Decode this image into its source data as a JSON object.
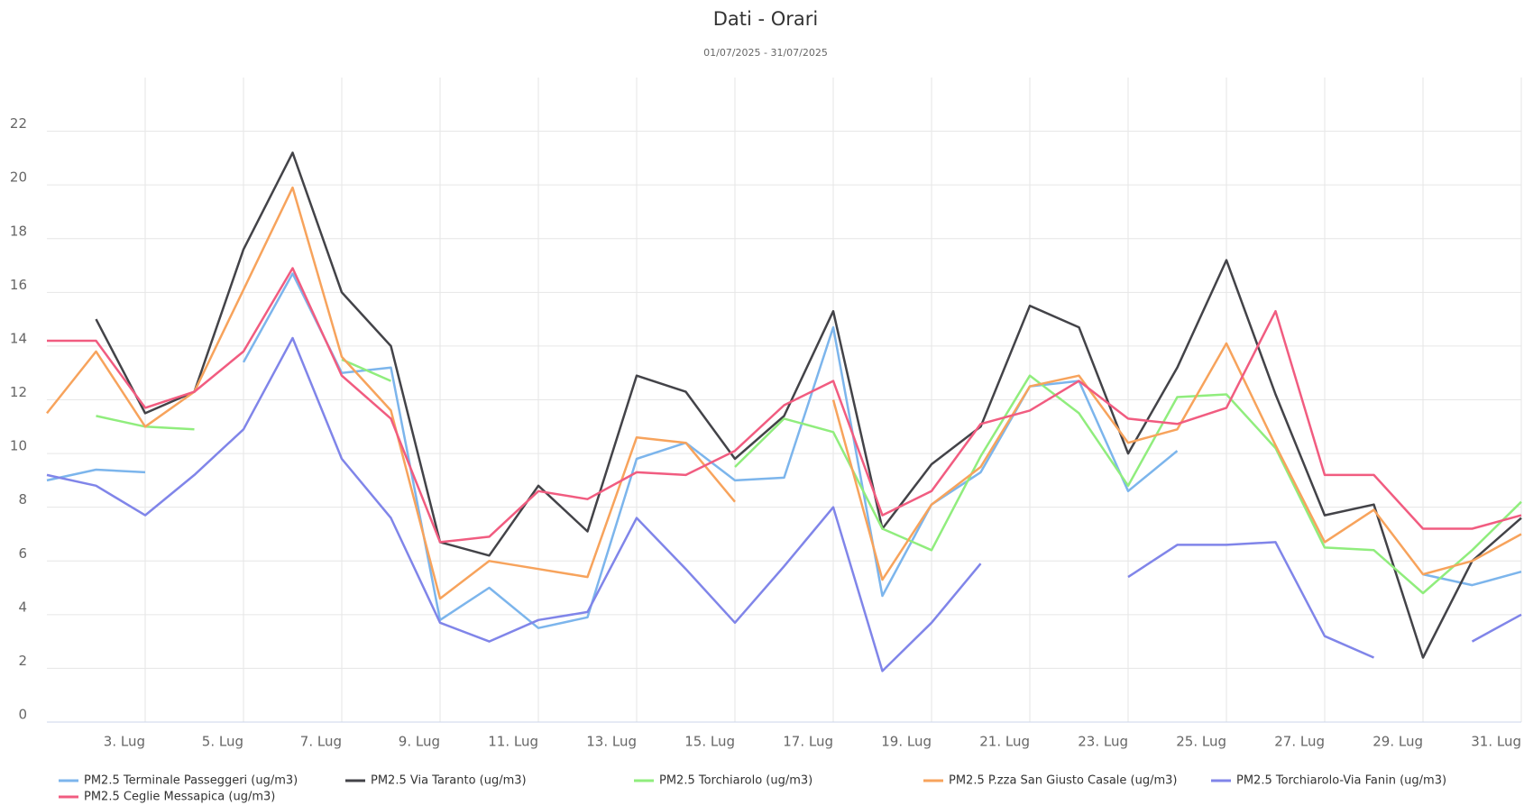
{
  "chart_data": {
    "type": "line",
    "title": "Dati - Orari",
    "subtitle": "01/07/2025 - 31/07/2025",
    "x": [
      1,
      2,
      3,
      4,
      5,
      6,
      7,
      8,
      9,
      10,
      11,
      12,
      13,
      14,
      15,
      16,
      17,
      18,
      19,
      20,
      21,
      22,
      23,
      24,
      25,
      26,
      27,
      28,
      29,
      30,
      31
    ],
    "xlim": [
      1,
      31
    ],
    "xticks": [
      {
        "value": 3,
        "label": "3. Lug"
      },
      {
        "value": 5,
        "label": "5. Lug"
      },
      {
        "value": 7,
        "label": "7. Lug"
      },
      {
        "value": 9,
        "label": "9. Lug"
      },
      {
        "value": 11,
        "label": "11. Lug"
      },
      {
        "value": 13,
        "label": "13. Lug"
      },
      {
        "value": 15,
        "label": "15. Lug"
      },
      {
        "value": 17,
        "label": "17. Lug"
      },
      {
        "value": 19,
        "label": "19. Lug"
      },
      {
        "value": 21,
        "label": "21. Lug"
      },
      {
        "value": 23,
        "label": "23. Lug"
      },
      {
        "value": 25,
        "label": "25. Lug"
      },
      {
        "value": 27,
        "label": "27. Lug"
      },
      {
        "value": 29,
        "label": "29. Lug"
      },
      {
        "value": 31,
        "label": "31. Lug"
      }
    ],
    "ylim": [
      0,
      24
    ],
    "yticks": [
      0,
      2,
      4,
      6,
      8,
      10,
      12,
      14,
      16,
      18,
      20,
      22
    ],
    "grid": true,
    "series": [
      {
        "name": "PM2.5 Terminale Passeggeri (ug/m3)",
        "color": "#7cb5ec",
        "values": [
          9.0,
          9.4,
          9.3,
          null,
          13.4,
          16.7,
          13.0,
          13.2,
          3.8,
          5.0,
          3.5,
          3.9,
          9.8,
          10.4,
          9.0,
          9.1,
          14.7,
          4.7,
          8.1,
          9.3,
          12.5,
          12.7,
          8.6,
          10.1,
          null,
          null,
          null,
          null,
          5.5,
          5.1,
          5.6
        ]
      },
      {
        "name": "PM2.5 Via Taranto (ug/m3)",
        "color": "#434348",
        "values": [
          null,
          15.0,
          11.5,
          12.3,
          17.6,
          21.2,
          16.0,
          14.0,
          6.7,
          6.2,
          8.8,
          7.1,
          12.9,
          12.3,
          9.8,
          11.4,
          15.3,
          7.2,
          9.6,
          11.0,
          15.5,
          14.7,
          10.0,
          13.2,
          17.2,
          12.2,
          7.7,
          8.1,
          2.4,
          6.0,
          7.6
        ]
      },
      {
        "name": "PM2.5 Torchiarolo (ug/m3)",
        "color": "#90ed7d",
        "values": [
          null,
          11.4,
          11.0,
          10.9,
          null,
          null,
          13.5,
          12.7,
          null,
          null,
          null,
          null,
          null,
          null,
          9.5,
          11.3,
          10.8,
          7.2,
          6.4,
          9.9,
          12.9,
          11.5,
          8.8,
          12.1,
          12.2,
          10.2,
          6.5,
          6.4,
          4.8,
          6.4,
          8.2
        ]
      },
      {
        "name": "PM2.5 P.zza San Giusto Casale (ug/m3)",
        "color": "#f7a35c",
        "values": [
          11.5,
          13.8,
          11.0,
          12.3,
          16.1,
          19.9,
          13.6,
          11.6,
          4.6,
          6.0,
          5.7,
          5.4,
          10.6,
          10.4,
          8.2,
          null,
          12.0,
          5.3,
          8.1,
          9.5,
          12.5,
          12.9,
          10.4,
          10.9,
          14.1,
          10.3,
          6.7,
          7.9,
          5.5,
          6.0,
          7.0
        ]
      },
      {
        "name": "PM2.5 Torchiarolo-Via Fanin (ug/m3)",
        "color": "#8085e9",
        "values": [
          9.2,
          8.8,
          7.7,
          9.2,
          10.9,
          14.3,
          9.8,
          7.6,
          3.7,
          3.0,
          3.8,
          4.1,
          7.6,
          5.7,
          3.7,
          5.8,
          8.0,
          1.9,
          3.7,
          5.9,
          null,
          null,
          5.4,
          6.6,
          6.6,
          6.7,
          3.2,
          2.4,
          null,
          3.0,
          4.0
        ]
      },
      {
        "name": "PM2.5 Ceglie Messapica (ug/m3)",
        "color": "#f15c80",
        "values": [
          14.2,
          14.2,
          11.7,
          12.3,
          13.8,
          16.9,
          12.9,
          11.3,
          6.7,
          6.9,
          8.6,
          8.3,
          9.3,
          9.2,
          10.1,
          11.8,
          12.7,
          7.7,
          8.6,
          11.1,
          11.6,
          12.7,
          11.3,
          11.1,
          11.7,
          15.3,
          9.2,
          9.2,
          7.2,
          7.2,
          7.7
        ]
      }
    ]
  }
}
